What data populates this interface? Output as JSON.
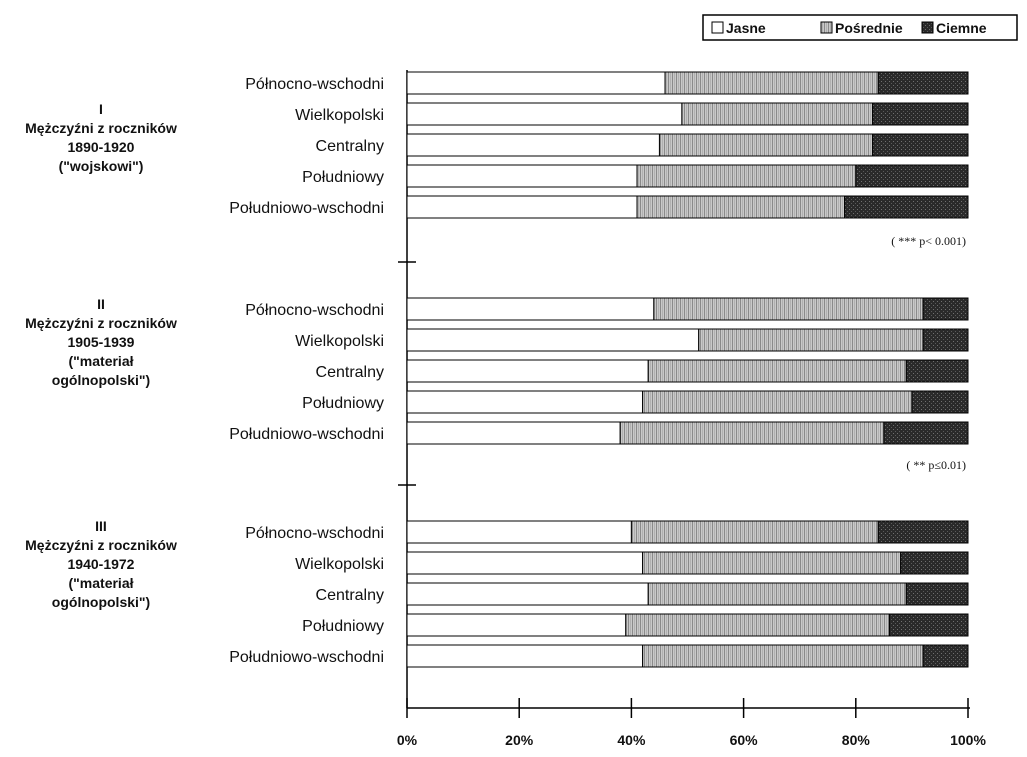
{
  "chart_data": {
    "type": "bar",
    "stacked": "percent",
    "orientation": "horizontal",
    "legend": {
      "position": "top-right",
      "entries": [
        "Jasne",
        "Pośrednie",
        "Ciemne"
      ]
    },
    "series_colors": {
      "Jasne": "#ffffff",
      "Pośrednie": "#c4c4c4",
      "Ciemne": "#262626"
    },
    "xaxis": {
      "min": 0,
      "max": 100,
      "ticks": [
        0,
        20,
        40,
        60,
        80,
        100
      ],
      "tick_labels": [
        "0%",
        "20%",
        "40%",
        "60%",
        "80%",
        "100%"
      ]
    },
    "groups": [
      {
        "label_lines": [
          "I",
          "Mężczyźni z roczników",
          "1890-1920",
          "(\"wojskowi\")"
        ],
        "note": "( *** p< 0.001)",
        "categories": [
          "Północno-wschodni",
          "Wielkopolski",
          "Centralny",
          "Południowy",
          "Południowo-wschodni"
        ],
        "series": [
          {
            "name": "Jasne",
            "values": [
              46,
              49,
              45,
              41,
              41
            ]
          },
          {
            "name": "Pośrednie",
            "values": [
              38,
              34,
              38,
              39,
              37
            ]
          },
          {
            "name": "Ciemne",
            "values": [
              16,
              17,
              17,
              20,
              22
            ]
          }
        ]
      },
      {
        "label_lines": [
          "II",
          "Mężczyźni z roczników",
          "1905-1939",
          "(\"materiał",
          "ogólnopolski\")"
        ],
        "note": "( ** p≤0.01)",
        "categories": [
          "Północno-wschodni",
          "Wielkopolski",
          "Centralny",
          "Południowy",
          "Południowo-wschodni"
        ],
        "series": [
          {
            "name": "Jasne",
            "values": [
              44,
              52,
              43,
              42,
              38
            ]
          },
          {
            "name": "Pośrednie",
            "values": [
              48,
              40,
              46,
              48,
              47
            ]
          },
          {
            "name": "Ciemne",
            "values": [
              8,
              8,
              11,
              10,
              15
            ]
          }
        ]
      },
      {
        "label_lines": [
          "III",
          "Mężczyźni z roczników",
          "1940-1972",
          "(\"materiał",
          "ogólnopolski\")"
        ],
        "note": "",
        "categories": [
          "Północno-wschodni",
          "Wielkopolski",
          "Centralny",
          "Południowy",
          "Południowo-wschodni"
        ],
        "series": [
          {
            "name": "Jasne",
            "values": [
              40,
              42,
              43,
              39,
              42
            ]
          },
          {
            "name": "Pośrednie",
            "values": [
              44,
              46,
              46,
              47,
              50
            ]
          },
          {
            "name": "Ciemne",
            "values": [
              16,
              12,
              11,
              14,
              8
            ]
          }
        ]
      }
    ]
  }
}
